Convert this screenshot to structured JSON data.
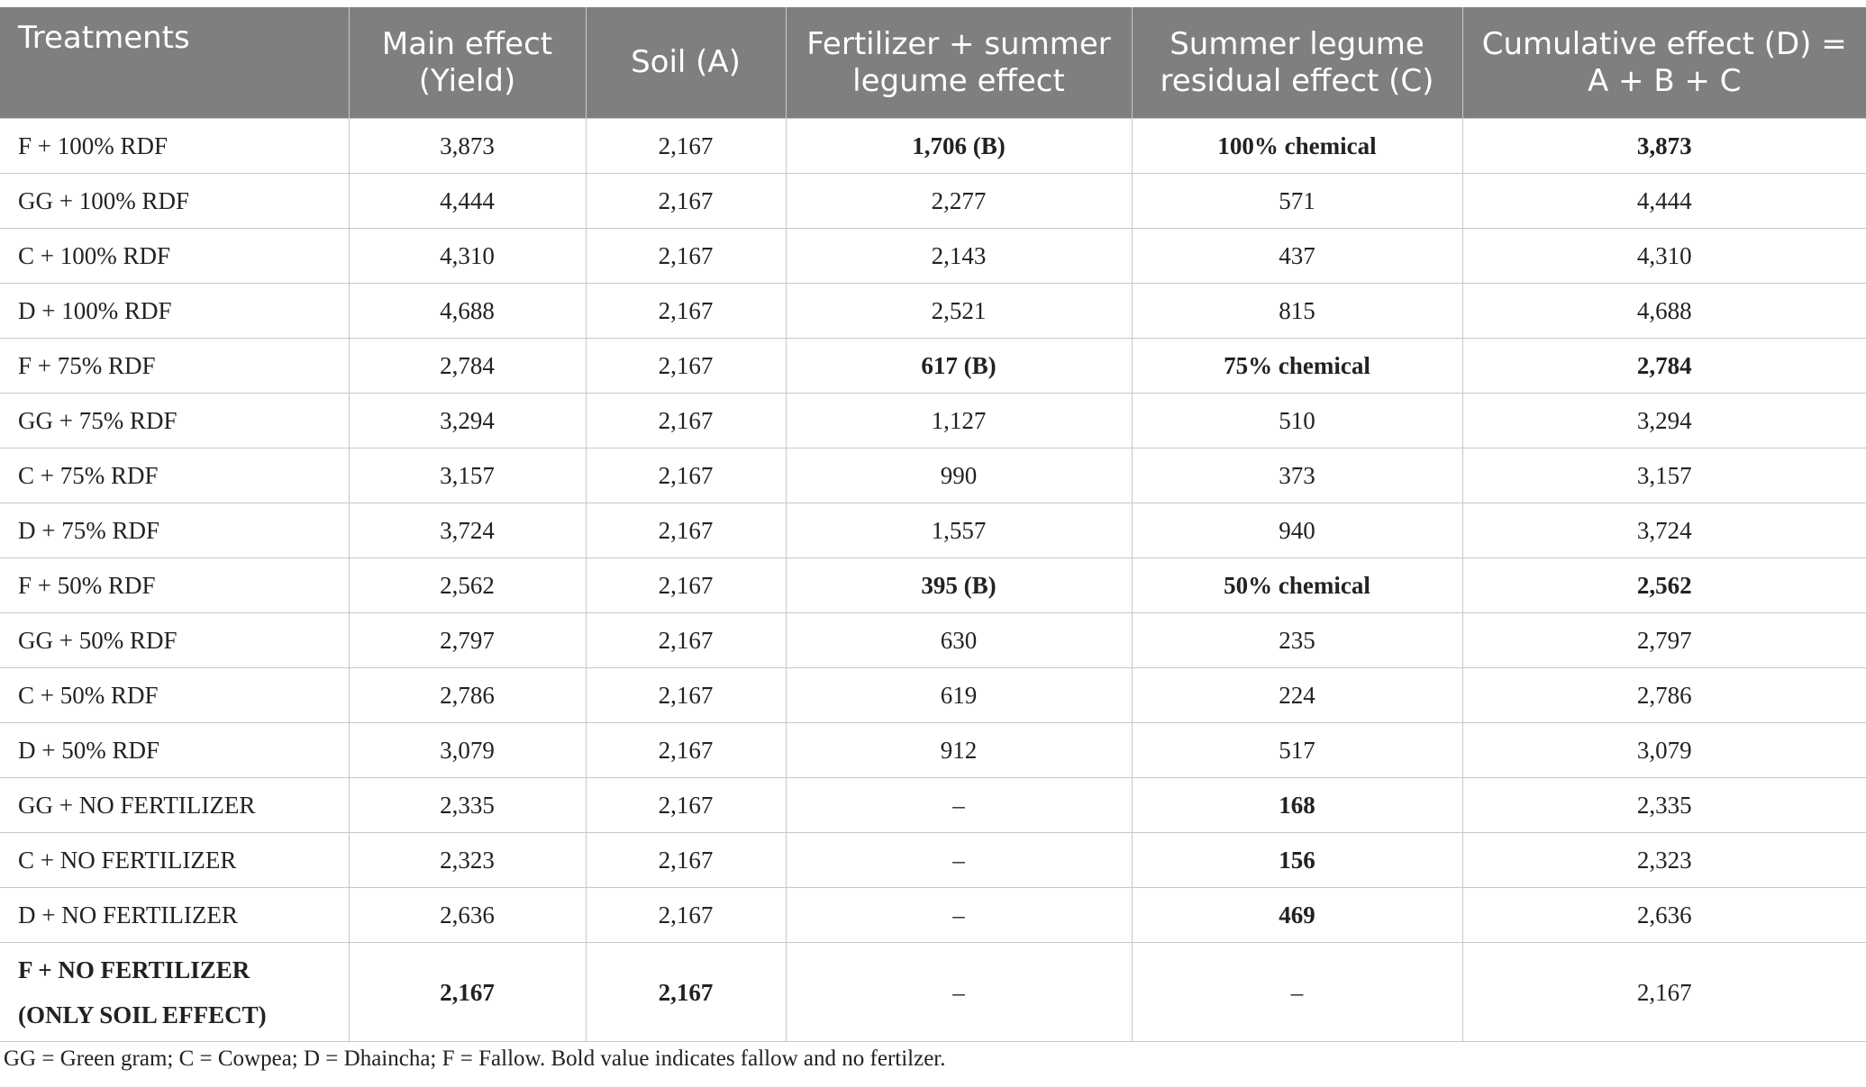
{
  "table": {
    "headers": [
      "Treatments",
      "Main effect (Yield)",
      "Soil (A)",
      "Fertilizer + summer legume effect",
      "Summer legume residual effect (C)",
      "Cumulative effect (D) = A + B + C"
    ],
    "rows": [
      {
        "treatment": "F + 100% RDF",
        "main": "3,873",
        "soil": "2,167",
        "fert": "1,706 (B)",
        "residual": "100% chemical",
        "cumulative": "3,873"
      },
      {
        "treatment": "GG + 100% RDF",
        "main": "4,444",
        "soil": "2,167",
        "fert": "2,277",
        "residual": "571",
        "cumulative": "4,444"
      },
      {
        "treatment": "C + 100% RDF",
        "main": "4,310",
        "soil": "2,167",
        "fert": "2,143",
        "residual": "437",
        "cumulative": "4,310"
      },
      {
        "treatment": "D + 100% RDF",
        "main": "4,688",
        "soil": "2,167",
        "fert": "2,521",
        "residual": "815",
        "cumulative": "4,688"
      },
      {
        "treatment": "F + 75% RDF",
        "main": "2,784",
        "soil": "2,167",
        "fert": "617 (B)",
        "residual": "75% chemical",
        "cumulative": "2,784"
      },
      {
        "treatment": "GG + 75% RDF",
        "main": "3,294",
        "soil": "2,167",
        "fert": "1,127",
        "residual": "510",
        "cumulative": "3,294"
      },
      {
        "treatment": "C + 75% RDF",
        "main": "3,157",
        "soil": "2,167",
        "fert": "990",
        "residual": "373",
        "cumulative": "3,157"
      },
      {
        "treatment": "D + 75% RDF",
        "main": "3,724",
        "soil": "2,167",
        "fert": "1,557",
        "residual": "940",
        "cumulative": "3,724"
      },
      {
        "treatment": "F + 50% RDF",
        "main": "2,562",
        "soil": "2,167",
        "fert": "395 (B)",
        "residual": "50% chemical",
        "cumulative": "2,562"
      },
      {
        "treatment": "GG + 50% RDF",
        "main": "2,797",
        "soil": "2,167",
        "fert": "630",
        "residual": "235",
        "cumulative": "2,797"
      },
      {
        "treatment": "C + 50% RDF",
        "main": "2,786",
        "soil": "2,167",
        "fert": "619",
        "residual": "224",
        "cumulative": "2,786"
      },
      {
        "treatment": "D + 50% RDF",
        "main": "3,079",
        "soil": "2,167",
        "fert": "912",
        "residual": "517",
        "cumulative": "3,079"
      },
      {
        "treatment": "GG + NO FERTILIZER",
        "main": "2,335",
        "soil": "2,167",
        "fert": "–",
        "residual": "168",
        "cumulative": "2,335"
      },
      {
        "treatment": "C + NO FERTILIZER",
        "main": "2,323",
        "soil": "2,167",
        "fert": "–",
        "residual": "156",
        "cumulative": "2,323"
      },
      {
        "treatment": "D + NO FERTILIZER",
        "main": "2,636",
        "soil": "2,167",
        "fert": "–",
        "residual": "469",
        "cumulative": "2,636"
      },
      {
        "treatment": "F + NO FERTILIZER",
        "treatment_line2": "(ONLY SOIL EFFECT)",
        "main": "2,167",
        "soil": "2,167",
        "fert": "–",
        "residual": "–",
        "cumulative": "2,167"
      }
    ]
  },
  "footnote": "GG = Green gram; C = Cowpea; D = Dhaincha; F = Fallow. Bold value indicates fallow and no fertilzer."
}
